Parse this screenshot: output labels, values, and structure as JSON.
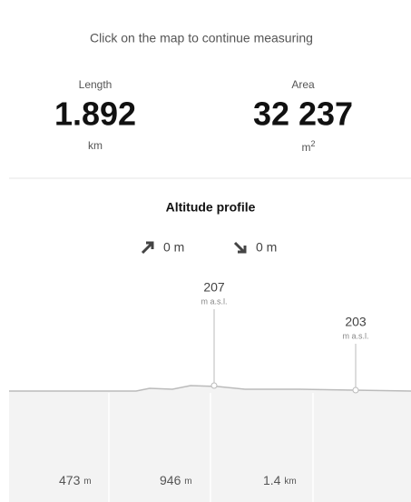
{
  "hint": "Click on the map to continue measuring",
  "stats": [
    {
      "label": "Length",
      "value": "1.892",
      "unit": "km"
    },
    {
      "label": "Area",
      "value": "32 237",
      "unit": "m",
      "unit_sup": "2"
    }
  ],
  "profile": {
    "title": "Altitude profile",
    "ascent": "0 m",
    "descent": "0 m",
    "markers": [
      {
        "value": "207",
        "unit": "m a.s.l."
      },
      {
        "value": "203",
        "unit": "m a.s.l."
      }
    ],
    "distance_labels": [
      {
        "value": "473",
        "unit": "m"
      },
      {
        "value": "946",
        "unit": "m"
      },
      {
        "value": "1.4",
        "unit": "km"
      }
    ]
  }
}
